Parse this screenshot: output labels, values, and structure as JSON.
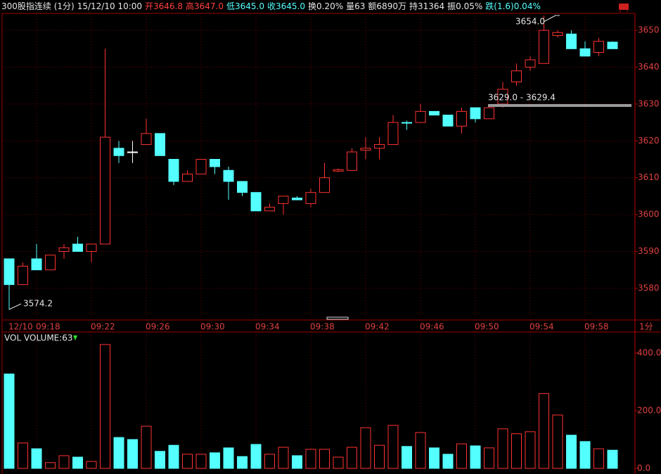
{
  "header": {
    "items": [
      {
        "text": "300股指连续 (1分)",
        "color": "#e6e6e6"
      },
      {
        "text": "15/12/10 10:00",
        "color": "#e6e6e6"
      },
      {
        "text": "开3646.8",
        "color": "#ff4040"
      },
      {
        "text": "高3647.0",
        "color": "#ff4040"
      },
      {
        "text": "低3645.0",
        "color": "#54ffff"
      },
      {
        "text": "收3645.0",
        "color": "#54ffff"
      },
      {
        "text": "换0.20%",
        "color": "#e6e6e6"
      },
      {
        "text": "量63",
        "color": "#e6e6e6"
      },
      {
        "text": "额6890万",
        "color": "#e6e6e6"
      },
      {
        "text": "持31364",
        "color": "#e6e6e6"
      },
      {
        "text": "振0.05%",
        "color": "#e6e6e6"
      },
      {
        "text": "跌(1.6)0.04%",
        "color": "#54ffff"
      }
    ]
  },
  "chart_data": [
    {
      "type": "candlestick",
      "categories": [
        "12/10",
        null,
        "09:18",
        null,
        null,
        null,
        "09:22",
        null,
        null,
        null,
        "09:26",
        null,
        null,
        null,
        "09:30",
        null,
        null,
        null,
        "09:34",
        null,
        null,
        null,
        "09:38",
        null,
        null,
        null,
        "09:42",
        null,
        null,
        null,
        "09:46",
        null,
        null,
        null,
        "09:50",
        null,
        null,
        null,
        "09:54",
        null,
        null,
        null,
        "09:58",
        null,
        null
      ],
      "x_unit": "1分",
      "open": [
        3588,
        3581,
        3588,
        3585,
        3590,
        3592,
        3590,
        3592,
        3618,
        3617,
        3619,
        3622,
        3615,
        3609,
        3611,
        3615,
        3612,
        3609,
        3606,
        3601,
        3603,
        3604.5,
        3603,
        3606,
        3611.8,
        3612,
        3617.5,
        3618,
        3619,
        3625,
        3625,
        3628,
        3627,
        3624,
        3629,
        3626,
        3630,
        3636,
        3640,
        3641,
        3648.6,
        3649,
        3645,
        3644,
        3646.8
      ],
      "high": [
        3588,
        3587,
        3592,
        3589,
        3592,
        3594,
        3592,
        3645,
        3620,
        3620,
        3626,
        3622,
        3615,
        3612,
        3615,
        3615,
        3613,
        3609,
        3606,
        3603,
        3605,
        3605,
        3607,
        3614,
        3612.5,
        3618,
        3621,
        3621,
        3627,
        3625.5,
        3630,
        3628,
        3627,
        3629,
        3629,
        3629.4,
        3636,
        3641,
        3643,
        3654.0,
        3650,
        3650,
        3647,
        3648,
        3647.0
      ],
      "low": [
        3574.2,
        3581,
        3585,
        3585,
        3588,
        3590,
        3587,
        3592,
        3614,
        3614,
        3619,
        3616,
        3608,
        3609,
        3611,
        3611,
        3604,
        3605,
        3601,
        3601,
        3600,
        3604,
        3602,
        3606,
        3611.5,
        3612,
        3615,
        3615,
        3619,
        3623,
        3625,
        3627,
        3624,
        3622,
        3625,
        3626,
        3629,
        3635,
        3639,
        3641,
        3648,
        3645,
        3643,
        3643,
        3645.0
      ],
      "close": [
        3581,
        3586,
        3585,
        3589,
        3591,
        3590,
        3592,
        3621,
        3616,
        3617,
        3622,
        3616,
        3609,
        3611,
        3615,
        3613,
        3609,
        3606,
        3601,
        3602,
        3605,
        3604,
        3606,
        3610,
        3612.2,
        3617,
        3618,
        3619,
        3625,
        3624.8,
        3628,
        3627,
        3624,
        3628,
        3626,
        3629,
        3634,
        3639,
        3642,
        3650,
        3649.4,
        3645,
        3643,
        3647,
        3645.0
      ],
      "annotations": [
        "3574.2",
        "3654.0",
        "3629.0 - 3629.4"
      ],
      "ylim": [
        3571.4,
        3654.6
      ],
      "yticks": [
        3580,
        3590,
        3600,
        3610,
        3620,
        3630,
        3640,
        3650
      ],
      "grid": true,
      "up_color": "#ff3232",
      "down_color": "#54ffff",
      "flat_color": "#ffffff"
    },
    {
      "type": "bar",
      "title": "VOL",
      "legend": "VOLUME:63",
      "values": [
        327,
        88,
        68,
        20,
        44,
        39,
        24,
        429,
        107,
        100,
        146,
        59,
        80,
        49,
        49,
        54,
        71,
        41,
        83,
        49,
        73,
        44,
        66,
        66,
        39,
        73,
        141,
        80,
        149,
        76,
        124,
        71,
        49,
        85,
        78,
        71,
        137,
        120,
        127,
        259,
        185,
        115,
        93,
        68,
        63
      ],
      "ylim": [
        0,
        458
      ],
      "yticks": [
        {
          "value": 0,
          "label": "0.0"
        },
        {
          "value": 200,
          "label": "200.0"
        },
        {
          "value": 400,
          "label": "400.0"
        }
      ],
      "grid": false
    }
  ]
}
